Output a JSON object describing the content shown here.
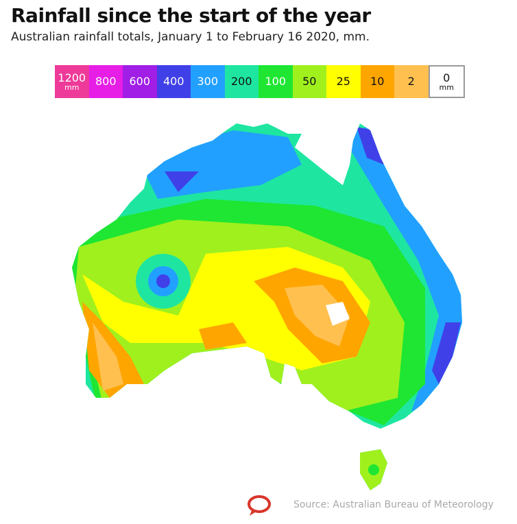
{
  "title": "Rainfall since the start of the year",
  "subtitle": "Australian rainfall totals, January 1 to February 16 2020, mm.",
  "legend": [
    {
      "label": "1200",
      "unit": "mm",
      "color": "#ee3a98"
    },
    {
      "label": "800",
      "color": "#e61ee6"
    },
    {
      "label": "600",
      "color": "#a01ee6"
    },
    {
      "label": "400",
      "color": "#4040e8"
    },
    {
      "label": "300",
      "color": "#22a0ff"
    },
    {
      "label": "200",
      "color": "#1ee6a0"
    },
    {
      "label": "100",
      "color": "#1ee632"
    },
    {
      "label": "50",
      "color": "#a0f01e"
    },
    {
      "label": "25",
      "color": "#ffff00"
    },
    {
      "label": "10",
      "color": "#ffa500"
    },
    {
      "label": "2",
      "color": "#ffc050"
    },
    {
      "label": "0",
      "unit": "mm",
      "color": "#ffffff"
    }
  ],
  "source": "Source: Australian Bureau of Meteorology"
}
